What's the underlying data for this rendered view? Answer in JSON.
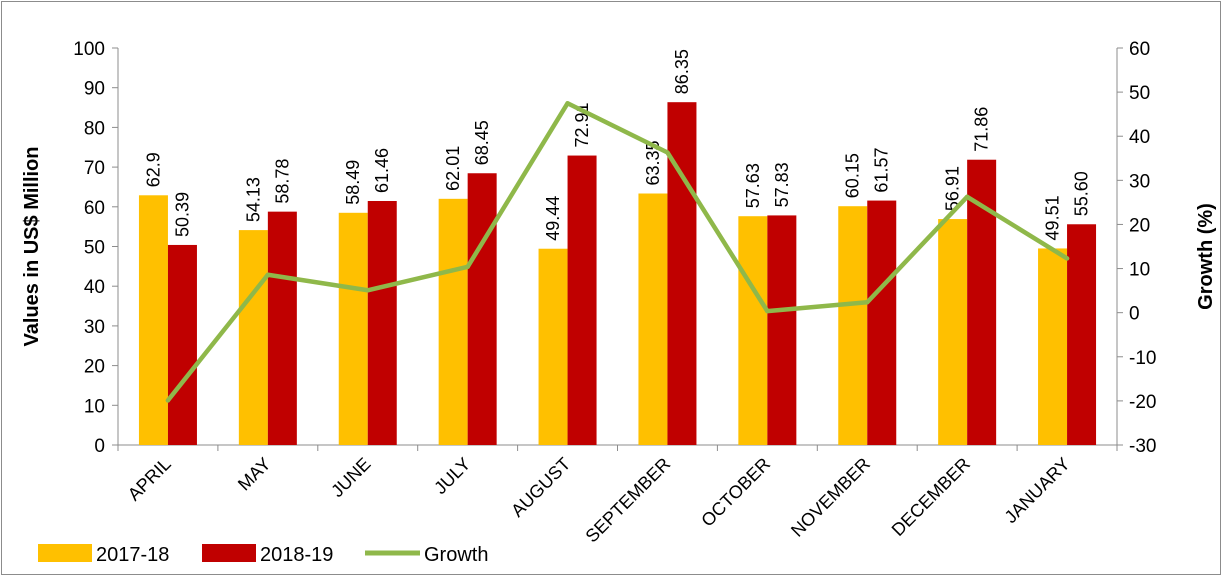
{
  "chart_data": {
    "type": "bar",
    "categories": [
      "APRIL",
      "MAY",
      "JUNE",
      "JULY",
      "AUGUST",
      "SEPTEMBER",
      "OCTOBER",
      "NOVEMBER",
      "DECEMBER",
      "JANUARY"
    ],
    "series": [
      {
        "name": "2017-18",
        "kind": "bar",
        "axis": "left",
        "color": "#FFC000",
        "values": [
          62.9,
          54.13,
          58.49,
          62.01,
          49.44,
          63.35,
          57.63,
          60.15,
          56.91,
          49.51
        ],
        "labels": [
          "62.9",
          "54.13",
          "58.49",
          "62.01",
          "49.44",
          "63.35",
          "57.63",
          "60.15",
          "56.91",
          "49.51"
        ]
      },
      {
        "name": "2018-19",
        "kind": "bar",
        "axis": "left",
        "color": "#C00000",
        "values": [
          50.39,
          58.78,
          61.46,
          68.45,
          72.91,
          86.35,
          57.83,
          61.57,
          71.86,
          55.6
        ],
        "labels": [
          "50.39",
          "58.78",
          "61.46",
          "68.45",
          "72.91",
          "86.35",
          "57.83",
          "61.57",
          "71.86",
          "55.60"
        ]
      },
      {
        "name": "Growth",
        "kind": "line",
        "axis": "right",
        "color": "#8FB84A",
        "values": [
          -19.89,
          8.59,
          5.08,
          10.39,
          47.47,
          36.31,
          0.35,
          2.36,
          26.27,
          12.3
        ]
      }
    ],
    "y_left": {
      "label": "Values in US$ Million",
      "min": 0,
      "max": 100,
      "step": 10,
      "ticks": [
        "0",
        "10",
        "20",
        "30",
        "40",
        "50",
        "60",
        "70",
        "80",
        "90",
        "100"
      ]
    },
    "y_right": {
      "label": "Growth (%)",
      "min": -30,
      "max": 60,
      "step": 10,
      "ticks": [
        "-30",
        "-20",
        "-10",
        "0",
        "10",
        "20",
        "30",
        "40",
        "50",
        "60"
      ]
    },
    "legend": {
      "position": "bottom-left",
      "items": [
        "2017-18",
        "2018-19",
        "Growth"
      ]
    },
    "grid": false,
    "title": ""
  }
}
